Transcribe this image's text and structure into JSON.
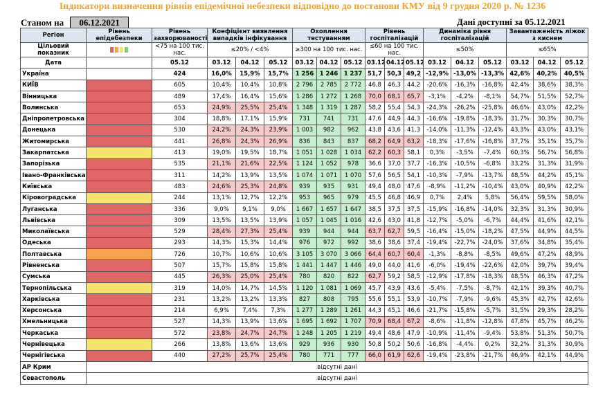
{
  "title": "Індикатори визначення рівнів епідемічної небезпеки відповідно до постанови КМУ від 9 грудня 2020 р. № 1236",
  "as_of_label": "Станом на",
  "as_of_date": "06.12.2021",
  "data_available": "Дані доступні за 05.12.2021",
  "headers": {
    "region": "Регіон",
    "level": "Рівень епідебезпеки",
    "incidence": "Рівень захворюваності",
    "detect": "Коефіцієнт виявлення випадків інфікування",
    "tests": "Охоплення тестуванням",
    "hosp": "Рівень госпіталізацій",
    "dyn": "Динаміка рівня госпіталізацій",
    "oxygen": "Завантаженість ліжок з киснем"
  },
  "targets": {
    "label": "Цільовий показник",
    "incidence": "<75 на 100 тис. нас.",
    "detect": "≤20% / <4%",
    "tests": "≥300 на 100 тис. нас.",
    "hosp": "≤60 на 100 тис. нас.",
    "dyn": "≤50%",
    "oxygen": "≤65%"
  },
  "date_label": "Дата",
  "dates": {
    "incidence": "05.12",
    "triple": [
      "03.12",
      "04.12",
      "05.12"
    ]
  },
  "legend_colors": [
    "#e06666",
    "#f6a24e",
    "#f7e56b",
    "#93c47d"
  ],
  "rows": [
    {
      "region": "Україна",
      "level": "",
      "inc": "424",
      "det": [
        "16,0%",
        "15,9%",
        "15,7%"
      ],
      "tst": [
        "1 256",
        "1 246",
        "1 237"
      ],
      "hsp": [
        "51,7",
        "50,3",
        "49,2"
      ],
      "dyn": [
        "-12,9%",
        "-13,0%",
        "-13,3%"
      ],
      "oxy": [
        "42,6%",
        "40,2%",
        "40,5%"
      ],
      "detC": [
        "",
        "",
        ""
      ],
      "tstC": [
        "g",
        "g",
        "g"
      ],
      "hspC": [
        "",
        "",
        ""
      ]
    },
    {
      "region": "КИЇВ",
      "level": "red",
      "inc": "605",
      "det": [
        "10,4%",
        "10,4%",
        "10,8%"
      ],
      "tst": [
        "2 796",
        "2 785",
        "2 772"
      ],
      "hsp": [
        "46,8",
        "46,3",
        "44,2"
      ],
      "dyn": [
        "-20,6%",
        "-16,3%",
        "-16,8%"
      ],
      "oxy": [
        "42,4%",
        "38,6%",
        "38,3%"
      ],
      "detC": [
        "",
        "",
        ""
      ],
      "tstC": [
        "g",
        "g",
        "g"
      ],
      "hspC": [
        "",
        "",
        ""
      ]
    },
    {
      "region": "Вінницька",
      "level": "red",
      "inc": "489",
      "det": [
        "17,4%",
        "16,4%",
        "15,6%"
      ],
      "tst": [
        "1 286",
        "1 272",
        "1 268"
      ],
      "hsp": [
        "70,0",
        "68,1",
        "65,7"
      ],
      "dyn": [
        "-3,1%",
        "-4,2%",
        "-8,1%"
      ],
      "oxy": [
        "54,7%",
        "51,5%",
        "52,7%"
      ],
      "detC": [
        "",
        "",
        ""
      ],
      "tstC": [
        "g",
        "g",
        "g"
      ],
      "hspC": [
        "r",
        "r",
        "r"
      ]
    },
    {
      "region": "Волинська",
      "level": "red",
      "inc": "653",
      "det": [
        "24,9%",
        "25,5%",
        "25,4%"
      ],
      "tst": [
        "1 348",
        "1 319",
        "1 287"
      ],
      "hsp": [
        "58,2",
        "55,4",
        "54,3"
      ],
      "dyn": [
        "-24,3%",
        "-26,2%",
        "-25,8%"
      ],
      "oxy": [
        "46,6%",
        "43,0%",
        "42,2%"
      ],
      "detC": [
        "r",
        "r",
        "r"
      ],
      "tstC": [
        "g",
        "g",
        "g"
      ],
      "hspC": [
        "",
        "",
        ""
      ]
    },
    {
      "region": "Дніпропетровська",
      "level": "red",
      "inc": "304",
      "det": [
        "18,8%",
        "17,1%",
        "15,9%"
      ],
      "tst": [
        "731",
        "741",
        "731"
      ],
      "hsp": [
        "47,6",
        "44,9",
        "44,3"
      ],
      "dyn": [
        "-16,6%",
        "-19,8%",
        "-18,3%"
      ],
      "oxy": [
        "31,7%",
        "30,3%",
        "30,7%"
      ],
      "detC": [
        "",
        "",
        ""
      ],
      "tstC": [
        "g",
        "g",
        "g"
      ],
      "hspC": [
        "",
        "",
        ""
      ]
    },
    {
      "region": "Донецька",
      "level": "red",
      "inc": "530",
      "det": [
        "24,2%",
        "24,3%",
        "23,9%"
      ],
      "tst": [
        "1 003",
        "982",
        "962"
      ],
      "hsp": [
        "43,8",
        "43,6",
        "41,3"
      ],
      "dyn": [
        "-14,0%",
        "-11,3%",
        "-12,4%"
      ],
      "oxy": [
        "43,3%",
        "43,0%",
        "43,1%"
      ],
      "detC": [
        "r",
        "r",
        "r"
      ],
      "tstC": [
        "g",
        "g",
        "g"
      ],
      "hspC": [
        "",
        "",
        ""
      ]
    },
    {
      "region": "Житомирська",
      "level": "red",
      "inc": "441",
      "det": [
        "26,8%",
        "24,3%",
        "26,9%"
      ],
      "tst": [
        "836",
        "843",
        "837"
      ],
      "hsp": [
        "68,2",
        "64,9",
        "63,2"
      ],
      "dyn": [
        "-18,3%",
        "-17,6%",
        "-16,8%"
      ],
      "oxy": [
        "37,7%",
        "35,1%",
        "35,7%"
      ],
      "detC": [
        "r",
        "r",
        "r"
      ],
      "tstC": [
        "g",
        "g",
        "g"
      ],
      "hspC": [
        "r",
        "r",
        "r"
      ]
    },
    {
      "region": "Закарпатська",
      "level": "yellow",
      "inc": "413",
      "det": [
        "19,0%",
        "19,5%",
        "18,7%"
      ],
      "tst": [
        "1 051",
        "1 028",
        "1 034"
      ],
      "hsp": [
        "62,2",
        "60,3",
        "58,1"
      ],
      "dyn": [
        "0,3%",
        "-3,5%",
        "-7,4%"
      ],
      "oxy": [
        "60,3%",
        "56,7%",
        "56,8%"
      ],
      "detC": [
        "",
        "",
        ""
      ],
      "tstC": [
        "g",
        "g",
        "g"
      ],
      "hspC": [
        "r",
        "r",
        ""
      ]
    },
    {
      "region": "Запорізька",
      "level": "red",
      "inc": "535",
      "det": [
        "21,1%",
        "21,6%",
        "22,5%"
      ],
      "tst": [
        "1 124",
        "1 052",
        "978"
      ],
      "hsp": [
        "36,6",
        "37,0",
        "37,7"
      ],
      "dyn": [
        "-16,3%",
        "-10,5%",
        "-6,8%"
      ],
      "oxy": [
        "33,2%",
        "31,3%",
        "31,9%"
      ],
      "detC": [
        "r",
        "r",
        "r"
      ],
      "tstC": [
        "g",
        "g",
        "g"
      ],
      "hspC": [
        "",
        "",
        ""
      ]
    },
    {
      "region": "Івано-Франківська",
      "level": "red",
      "inc": "311",
      "det": [
        "14,2%",
        "13,9%",
        "13,5%"
      ],
      "tst": [
        "1 074",
        "1 071",
        "1 070"
      ],
      "hsp": [
        "57,6",
        "56,5",
        "54,1"
      ],
      "dyn": [
        "-10,3%",
        "-7,9%",
        "-13,7%"
      ],
      "oxy": [
        "48,5%",
        "44,2%",
        "45,1%"
      ],
      "detC": [
        "",
        "",
        ""
      ],
      "tstC": [
        "g",
        "g",
        "g"
      ],
      "hspC": [
        "",
        "",
        ""
      ]
    },
    {
      "region": "Київська",
      "level": "red",
      "inc": "483",
      "det": [
        "24,6%",
        "25,3%",
        "24,8%"
      ],
      "tst": [
        "939",
        "935",
        "931"
      ],
      "hsp": [
        "49,4",
        "48,0",
        "47,6"
      ],
      "dyn": [
        "-8,9%",
        "-11,2%",
        "-10,4%"
      ],
      "oxy": [
        "43,0%",
        "40,9%",
        "42,2%"
      ],
      "detC": [
        "r",
        "r",
        "r"
      ],
      "tstC": [
        "g",
        "g",
        "g"
      ],
      "hspC": [
        "",
        "",
        ""
      ]
    },
    {
      "region": "Кіровоградська",
      "level": "yellow",
      "inc": "244",
      "det": [
        "13,1%",
        "12,7%",
        "12,2%"
      ],
      "tst": [
        "953",
        "965",
        "979"
      ],
      "hsp": [
        "45,5",
        "46,8",
        "46,9"
      ],
      "dyn": [
        "0,7%",
        "2,4%",
        "5,8%"
      ],
      "oxy": [
        "56,4%",
        "59,5%",
        "58,0%"
      ],
      "detC": [
        "",
        "",
        ""
      ],
      "tstC": [
        "g",
        "g",
        "g"
      ],
      "hspC": [
        "",
        "",
        ""
      ]
    },
    {
      "region": "Луганська",
      "level": "red",
      "inc": "336",
      "det": [
        "9,0%",
        "9,1%",
        "9,0%"
      ],
      "tst": [
        "1 667",
        "1 657",
        "1 647"
      ],
      "hsp": [
        "38,5",
        "37,5",
        "37,5"
      ],
      "dyn": [
        "-15,9%",
        "-16,8%",
        "-14,0%"
      ],
      "oxy": [
        "32,3%",
        "31,3%",
        "30,9%"
      ],
      "detC": [
        "",
        "",
        ""
      ],
      "tstC": [
        "g",
        "g",
        "g"
      ],
      "hspC": [
        "",
        "",
        ""
      ]
    },
    {
      "region": "Львівська",
      "level": "red",
      "inc": "309",
      "det": [
        "13,5%",
        "13,5%",
        "13,9%"
      ],
      "tst": [
        "1 057",
        "1 045",
        "1 016"
      ],
      "hsp": [
        "42,6",
        "43,0",
        "41,8"
      ],
      "dyn": [
        "-12,7%",
        "-5,0%",
        "-6,7%"
      ],
      "oxy": [
        "44,4%",
        "41,6%",
        "42,1%"
      ],
      "detC": [
        "",
        "",
        ""
      ],
      "tstC": [
        "g",
        "g",
        "g"
      ],
      "hspC": [
        "",
        "",
        ""
      ]
    },
    {
      "region": "Миколаївська",
      "level": "red",
      "inc": "529",
      "det": [
        "28,4%",
        "27,3%",
        "25,4%"
      ],
      "tst": [
        "939",
        "944",
        "944"
      ],
      "hsp": [
        "63,7",
        "62,7",
        "59,5"
      ],
      "dyn": [
        "-16,4%",
        "-15,0%",
        "-18,2%"
      ],
      "oxy": [
        "47,5%",
        "44,9%",
        "44,5%"
      ],
      "detC": [
        "r",
        "r",
        "r"
      ],
      "tstC": [
        "g",
        "g",
        "g"
      ],
      "hspC": [
        "r",
        "r",
        ""
      ]
    },
    {
      "region": "Одеська",
      "level": "red",
      "inc": "293",
      "det": [
        "14,3%",
        "15,3%",
        "14,4%"
      ],
      "tst": [
        "976",
        "972",
        "992"
      ],
      "hsp": [
        "38,6",
        "38,6",
        "37,4"
      ],
      "dyn": [
        "-19,4%",
        "-22,7%",
        "-24,0%"
      ],
      "oxy": [
        "37,6%",
        "34,8%",
        "35,4%"
      ],
      "detC": [
        "",
        "",
        ""
      ],
      "tstC": [
        "g",
        "g",
        "g"
      ],
      "hspC": [
        "",
        "",
        ""
      ]
    },
    {
      "region": "Полтавська",
      "level": "orange",
      "inc": "726",
      "det": [
        "10,7%",
        "10,6%",
        "10,6%"
      ],
      "tst": [
        "3 105",
        "3 070",
        "3 066"
      ],
      "hsp": [
        "64,4",
        "60,7",
        "60,4"
      ],
      "dyn": [
        "-1,3%",
        "-8,8%",
        "-8,5%"
      ],
      "oxy": [
        "49,6%",
        "47,2%",
        "48,9%"
      ],
      "detC": [
        "",
        "",
        ""
      ],
      "tstC": [
        "g",
        "g",
        "g"
      ],
      "hspC": [
        "r",
        "r",
        "r"
      ]
    },
    {
      "region": "Рівненська",
      "level": "red",
      "inc": "507",
      "det": [
        "15,7%",
        "15,8%",
        "15,8%"
      ],
      "tst": [
        "1 441",
        "1 447",
        "1 446"
      ],
      "hsp": [
        "49,0",
        "44,0",
        "41,6"
      ],
      "dyn": [
        "-6,0%",
        "-19,4%",
        "-22,6%"
      ],
      "oxy": [
        "42,0%",
        "39,7%",
        "39,4%"
      ],
      "detC": [
        "",
        "",
        ""
      ],
      "tstC": [
        "g",
        "g",
        "g"
      ],
      "hspC": [
        "",
        "",
        ""
      ]
    },
    {
      "region": "Сумська",
      "level": "red",
      "inc": "445",
      "det": [
        "26,3%",
        "25,0%",
        "25,4%"
      ],
      "tst": [
        "780",
        "820",
        "822"
      ],
      "hsp": [
        "62,7",
        "59,2",
        "58,5"
      ],
      "dyn": [
        "-12,9%",
        "-17,8%",
        "-18,3%"
      ],
      "oxy": [
        "48,5%",
        "46,3%",
        "47,2%"
      ],
      "detC": [
        "r",
        "r",
        "r"
      ],
      "tstC": [
        "g",
        "g",
        "g"
      ],
      "hspC": [
        "r",
        "",
        ""
      ]
    },
    {
      "region": "Тернопільська",
      "level": "yellow",
      "inc": "319",
      "det": [
        "14,0%",
        "14,7%",
        "14,5%"
      ],
      "tst": [
        "1 120",
        "1 081",
        "1 069"
      ],
      "hsp": [
        "45,7",
        "43,9",
        "43,6"
      ],
      "dyn": [
        "-5,4%",
        "-7,5%",
        "-8,7%"
      ],
      "oxy": [
        "42,1%",
        "39,3%",
        "40,7%"
      ],
      "detC": [
        "",
        "",
        ""
      ],
      "tstC": [
        "g",
        "g",
        "g"
      ],
      "hspC": [
        "",
        "",
        ""
      ]
    },
    {
      "region": "Харківська",
      "level": "red",
      "inc": "231",
      "det": [
        "13,2%",
        "13,2%",
        "13,3%"
      ],
      "tst": [
        "827",
        "808",
        "795"
      ],
      "hsp": [
        "55,6",
        "55,1",
        "53,9"
      ],
      "dyn": [
        "-10,7%",
        "-7,9%",
        "-9,6%"
      ],
      "oxy": [
        "45,3%",
        "42,7%",
        "42,6%"
      ],
      "detC": [
        "",
        "",
        ""
      ],
      "tstC": [
        "g",
        "g",
        "g"
      ],
      "hspC": [
        "",
        "",
        ""
      ]
    },
    {
      "region": "Херсонська",
      "level": "red",
      "inc": "214",
      "det": [
        "6,9%",
        "7,4%",
        "7,3%"
      ],
      "tst": [
        "1 277",
        "1 289",
        "1 261"
      ],
      "hsp": [
        "44,3",
        "45,1",
        "46,6"
      ],
      "dyn": [
        "-21,7%",
        "-15,8%",
        "-5,7%"
      ],
      "oxy": [
        "31,5%",
        "29,3%",
        "28,2%"
      ],
      "detC": [
        "",
        "",
        ""
      ],
      "tstC": [
        "g",
        "g",
        "g"
      ],
      "hspC": [
        "",
        "",
        ""
      ]
    },
    {
      "region": "Хмельницька",
      "level": "red",
      "inc": "527",
      "det": [
        "14,3%",
        "13,9%",
        "13,6%"
      ],
      "tst": [
        "1 695",
        "1 692",
        "1 707"
      ],
      "hsp": [
        "70,9",
        "68,4",
        "67,2"
      ],
      "dyn": [
        "-8,6%",
        "-11,8%",
        "-12,8%"
      ],
      "oxy": [
        "47,8%",
        "45,7%",
        "46,2%"
      ],
      "detC": [
        "",
        "",
        ""
      ],
      "tstC": [
        "g",
        "g",
        "g"
      ],
      "hspC": [
        "r",
        "r",
        "r"
      ]
    },
    {
      "region": "Черкаська",
      "level": "red",
      "inc": "572",
      "det": [
        "23,8%",
        "24,7%",
        "24,7%"
      ],
      "tst": [
        "1 248",
        "1 205",
        "1 219"
      ],
      "hsp": [
        "49,4",
        "48,6",
        "47,9"
      ],
      "dyn": [
        "-10,9%",
        "-11,4%",
        "-9,4%"
      ],
      "oxy": [
        "53,8%",
        "51,3%",
        "50,7%"
      ],
      "detC": [
        "r",
        "r",
        "r"
      ],
      "tstC": [
        "g",
        "g",
        "g"
      ],
      "hspC": [
        "",
        "",
        ""
      ]
    },
    {
      "region": "Чернівецька",
      "level": "yellow",
      "inc": "266",
      "det": [
        "13,8%",
        "13,6%",
        "13,6%"
      ],
      "tst": [
        "929",
        "936",
        "930"
      ],
      "hsp": [
        "50,8",
        "50,2",
        "50,6"
      ],
      "dyn": [
        "-16,8%",
        "-4,4%",
        "0,2%"
      ],
      "oxy": [
        "32,2%",
        "31,3%",
        "30,9%"
      ],
      "detC": [
        "",
        "",
        ""
      ],
      "tstC": [
        "g",
        "g",
        "g"
      ],
      "hspC": [
        "",
        "",
        ""
      ]
    },
    {
      "region": "Чернігівська",
      "level": "red",
      "inc": "440",
      "det": [
        "27,2%",
        "25,7%",
        "25,4%"
      ],
      "tst": [
        "780",
        "771",
        "777"
      ],
      "hsp": [
        "66,0",
        "61,9",
        "62,6"
      ],
      "dyn": [
        "-19,4%",
        "-23,8%",
        "-21,7%"
      ],
      "oxy": [
        "46,9%",
        "42,1%",
        "44,9%"
      ],
      "detC": [
        "r",
        "r",
        "r"
      ],
      "tstC": [
        "g",
        "g",
        "g"
      ],
      "hspC": [
        "r",
        "r",
        "r"
      ]
    }
  ],
  "missing_rows": [
    {
      "region": "АР Крим",
      "note": "відсутні дані"
    },
    {
      "region": "Севастополь",
      "note": "відсутні дані"
    }
  ]
}
